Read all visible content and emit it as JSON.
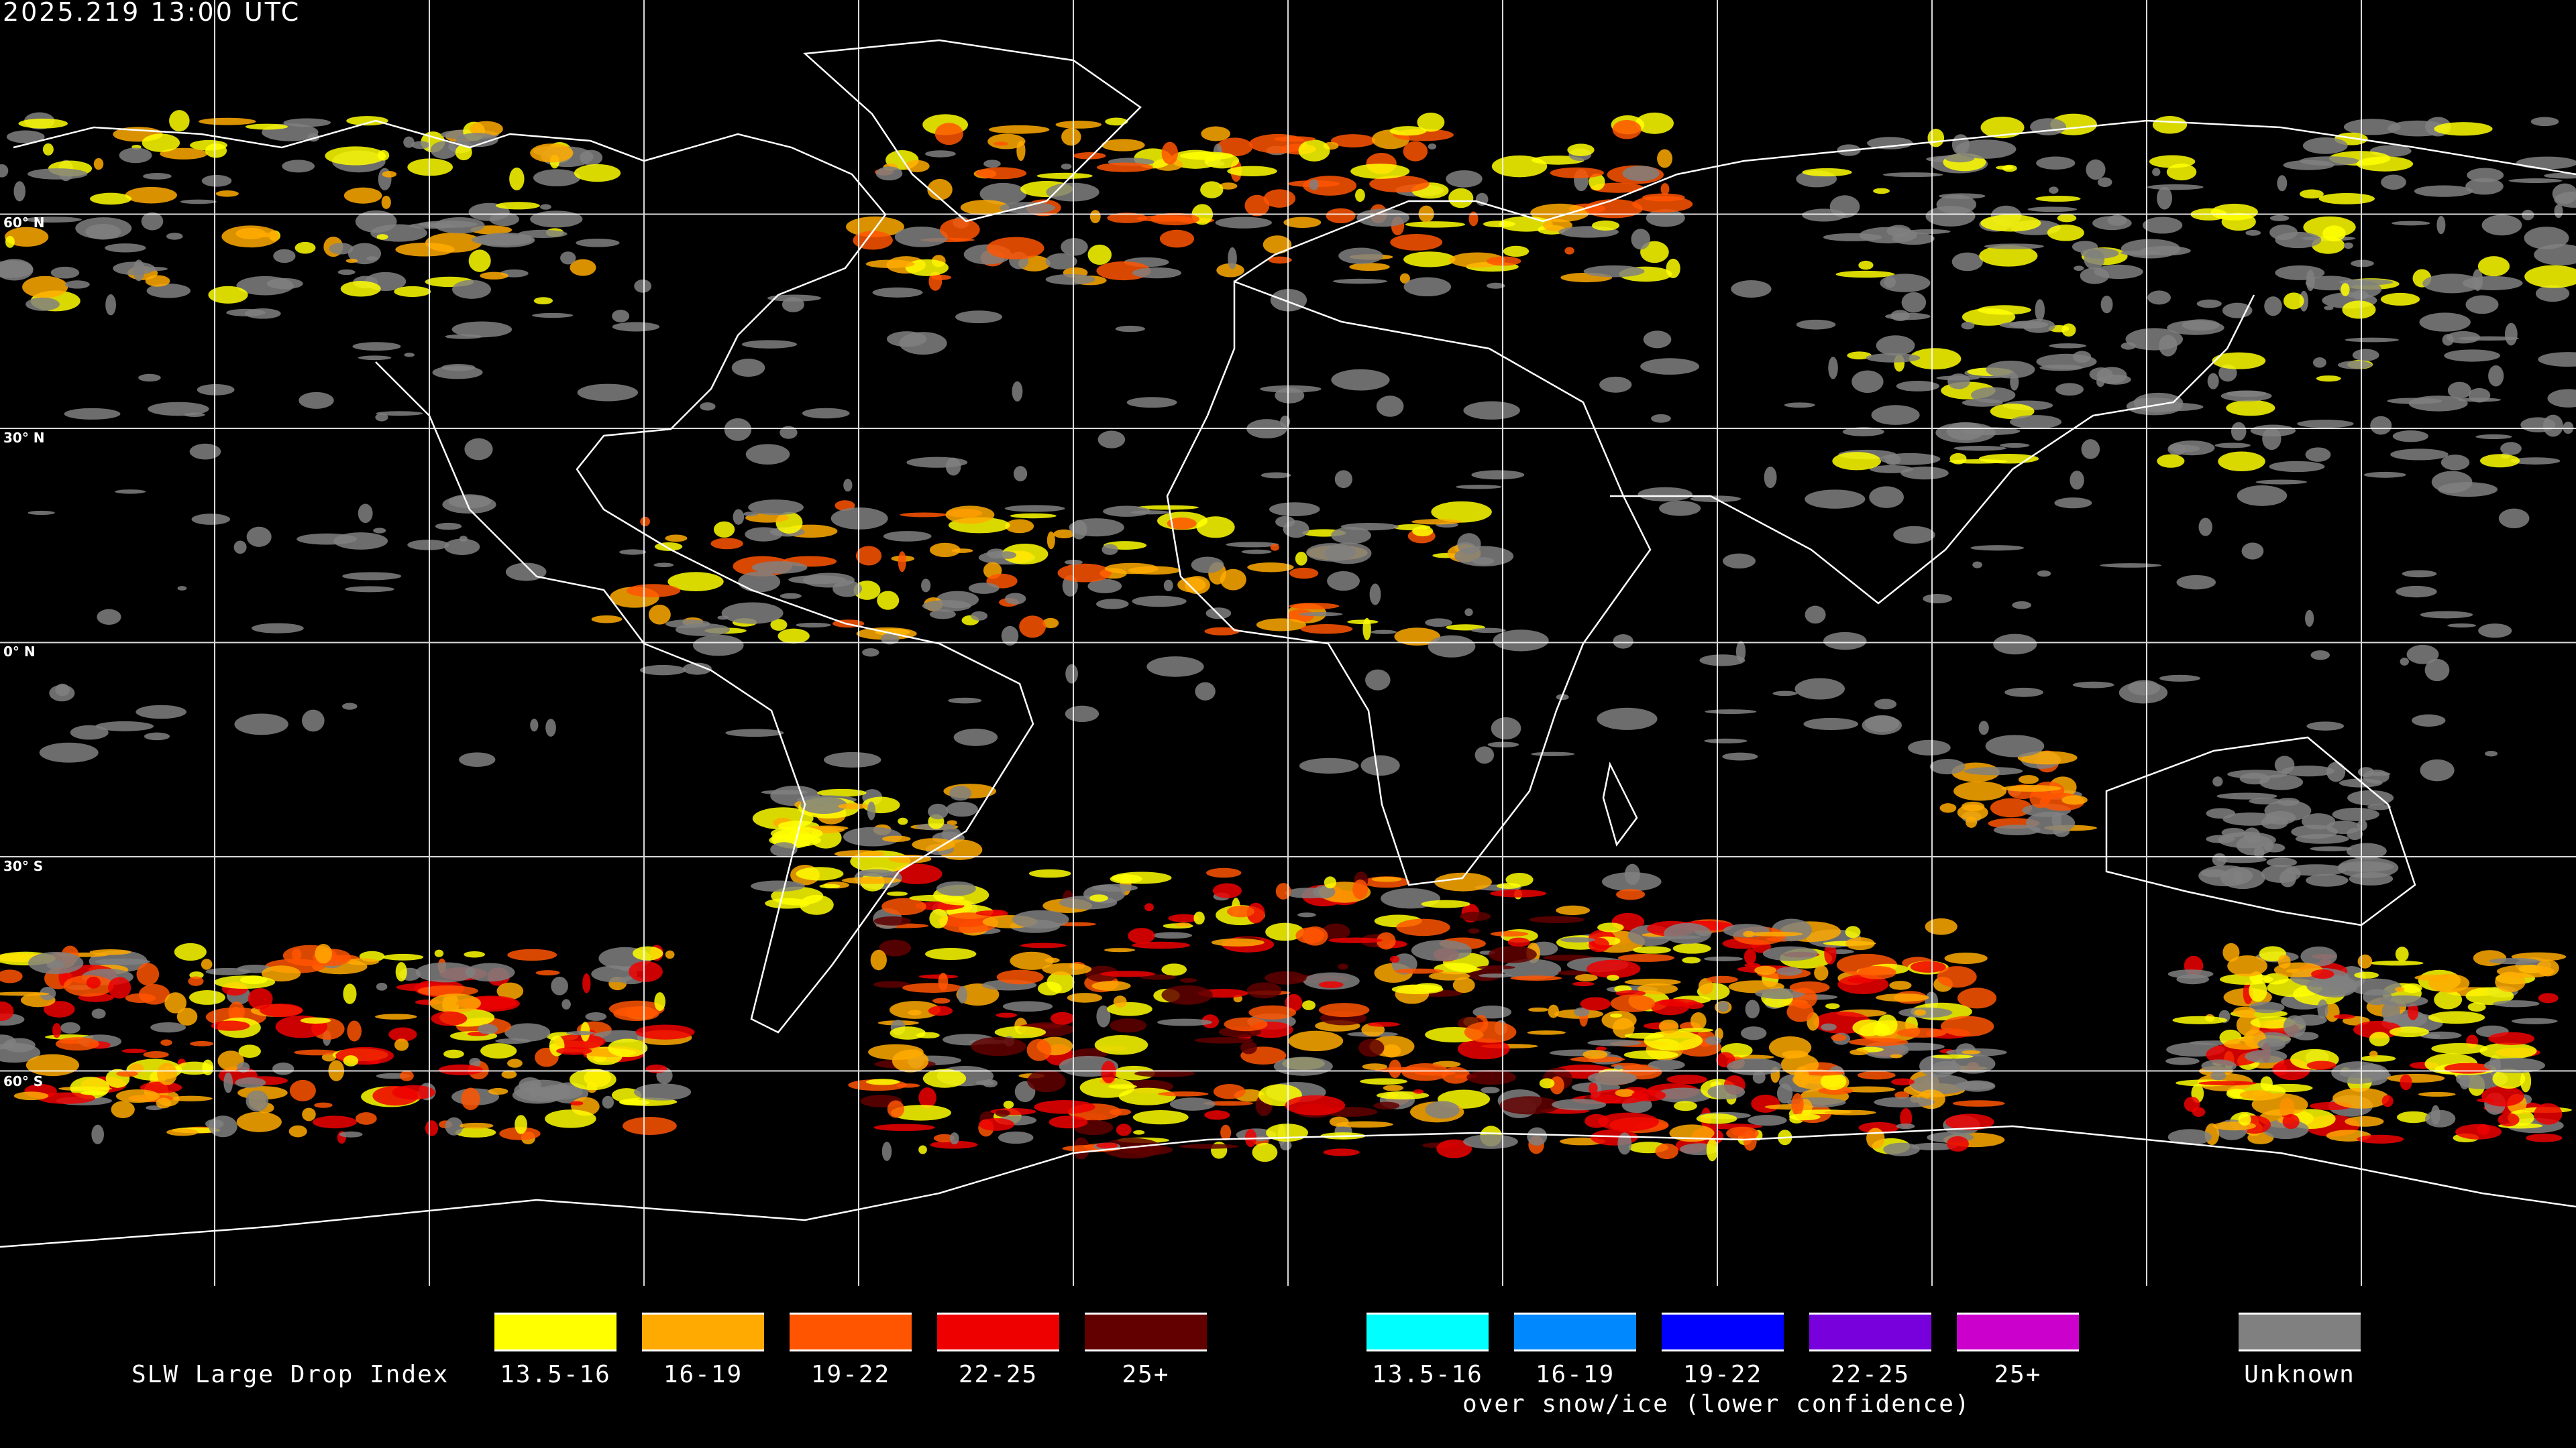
{
  "header": {
    "timestamp": "2025.219 13:00 UTC"
  },
  "map": {
    "latitude_labels": [
      "60° N",
      "30° N",
      "0° N",
      "30° S",
      "60° S"
    ],
    "background": "#000000",
    "coastline_color": "#ffffff",
    "grid_color": "#ffffff"
  },
  "legend": {
    "title": "SLW Large Drop Index",
    "classes": [
      {
        "label": "13.5-16",
        "color": "#ffff00"
      },
      {
        "label": "16-19",
        "color": "#ffaa00"
      },
      {
        "label": "19-22",
        "color": "#ff5500"
      },
      {
        "label": "22-25",
        "color": "#ee0000"
      },
      {
        "label": "25+",
        "color": "#620000"
      }
    ],
    "snow_ice_classes": [
      {
        "label": "13.5-16",
        "color": "#00ffff"
      },
      {
        "label": "16-19",
        "color": "#0088ff"
      },
      {
        "label": "19-22",
        "color": "#0000ff"
      },
      {
        "label": "22-25",
        "color": "#7700dd"
      },
      {
        "label": "25+",
        "color": "#cc00cc"
      }
    ],
    "snow_ice_caption": "over snow/ice (lower confidence)",
    "unknown": {
      "label": "Unknown",
      "color": "#808080"
    }
  }
}
